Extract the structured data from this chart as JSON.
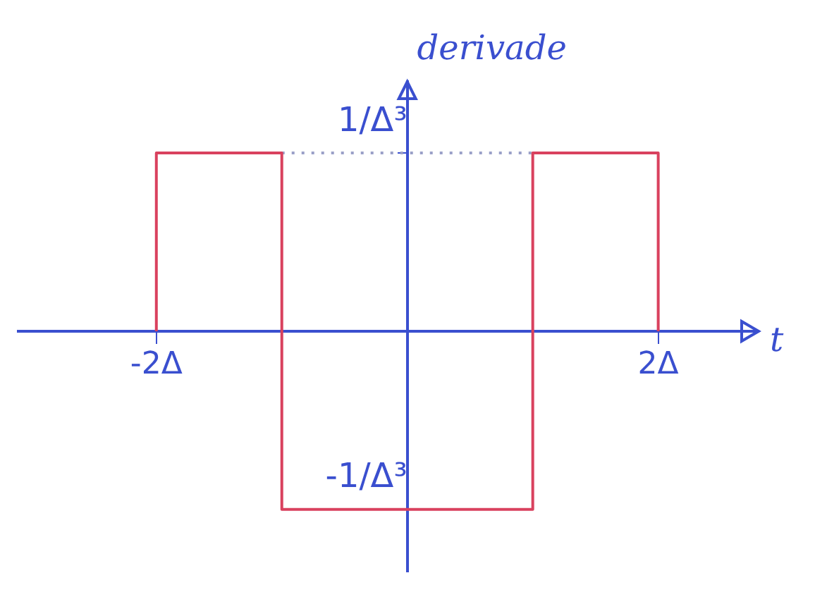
{
  "chart_data": {
    "type": "step",
    "ylabel": "derivade",
    "xlabel": "t",
    "series": [
      {
        "color": "#d9415e",
        "x": [
          -2,
          -2,
          -1,
          1,
          2,
          2
        ],
        "values": [
          0,
          1,
          -1,
          1,
          1,
          0
        ]
      },
      {
        "type": "line",
        "color": "#9aa0c8",
        "line_style": "dotted",
        "x": [
          -1,
          1
        ],
        "values": [
          1,
          1
        ]
      }
    ],
    "xlim": [
      -3.1,
      2.8
    ],
    "ylim": [
      -1.35,
      1.4
    ],
    "xticks": [
      {
        "value": -2,
        "label": "-2Δ"
      },
      {
        "value": 2,
        "label": "2Δ"
      }
    ],
    "yticks": [
      {
        "value": 1,
        "label": "1/Δ³"
      },
      {
        "value": -1,
        "label": "-1/Δ³"
      }
    ],
    "grid": false,
    "legend": false
  }
}
